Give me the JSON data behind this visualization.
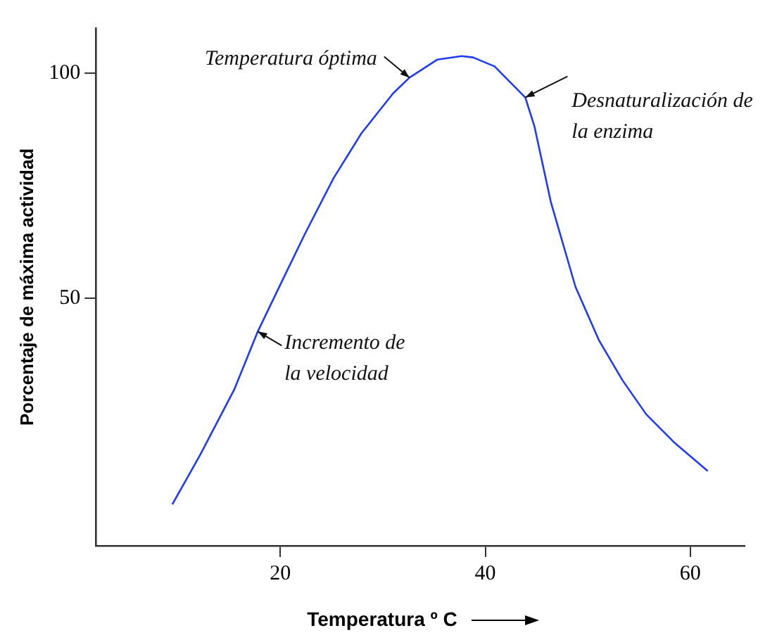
{
  "chart_data": {
    "type": "line",
    "xlabel": "Temperatura º C",
    "ylabel": "Porcentaje de máxima actividad",
    "x": [
      9.46,
      12.2,
      15.5,
      17.8,
      20.1,
      22.4,
      25.2,
      27.9,
      31.0,
      32.6,
      35.3,
      37.7,
      38.8,
      40.9,
      43.9,
      44.8,
      46.4,
      48.8,
      51.1,
      53.4,
      55.7,
      58.5,
      61.7
    ],
    "series": [
      {
        "color": "#1f3cf0",
        "values": [
          4.2,
          15.3,
          29.7,
          42.6,
          53.5,
          64.3,
          76.7,
          86.6,
          95.5,
          99.0,
          103.0,
          103.8,
          103.5,
          101.5,
          94.6,
          88.1,
          71.3,
          52.5,
          40.6,
          31.7,
          24.2,
          17.8,
          11.6
        ]
      }
    ],
    "xlim": [
      2,
      65.3
    ],
    "xticks": [
      20,
      40,
      60
    ],
    "ylim": [
      -5,
      110
    ],
    "yticks": [
      50,
      100
    ],
    "grid": false,
    "legend": false,
    "marker": "none",
    "line_style": "solid",
    "annotations": [
      {
        "text": "Temperatura óptima",
        "x": 32.6,
        "y": 99.0
      },
      {
        "text": "Desnaturalización de la enzima",
        "x": 43.9,
        "y": 94.6
      },
      {
        "text": "Incremento de la velocidad",
        "x": 17.8,
        "y": 42.6
      }
    ]
  }
}
